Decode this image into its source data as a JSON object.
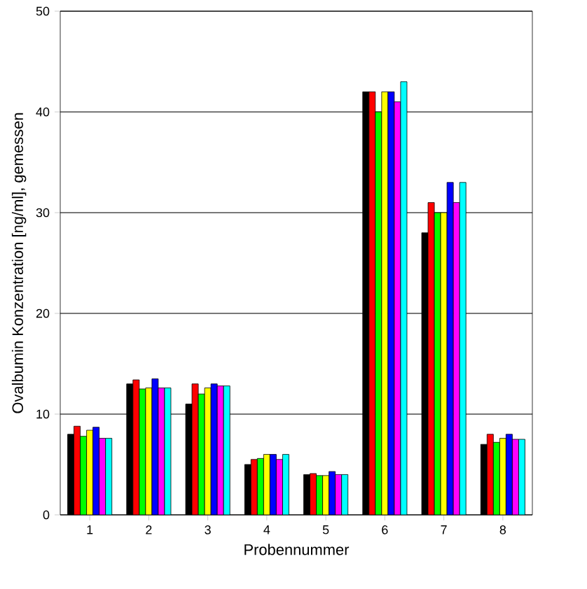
{
  "chart_data": {
    "type": "bar",
    "xlabel": "Probennummer",
    "ylabel": "Ovalbumin Konzentration [ng/ml], gemessen",
    "categories": [
      "1",
      "2",
      "3",
      "4",
      "5",
      "6",
      "7",
      "8"
    ],
    "series": [
      {
        "color": "#000000",
        "values": [
          8.0,
          13.0,
          11.0,
          5.0,
          4.0,
          42.0,
          28.0,
          7.0
        ]
      },
      {
        "color": "#ff0000",
        "values": [
          8.8,
          13.4,
          13.0,
          5.5,
          4.1,
          42.0,
          31.0,
          8.0
        ]
      },
      {
        "color": "#00ff00",
        "values": [
          7.8,
          12.5,
          12.0,
          5.6,
          3.9,
          40.0,
          30.0,
          7.2
        ]
      },
      {
        "color": "#ffff00",
        "values": [
          8.4,
          12.6,
          12.6,
          6.0,
          3.9,
          42.0,
          30.0,
          7.6
        ]
      },
      {
        "color": "#0000ff",
        "values": [
          8.7,
          13.5,
          13.0,
          6.0,
          4.3,
          42.0,
          33.0,
          8.0
        ]
      },
      {
        "color": "#ff00ff",
        "values": [
          7.6,
          12.6,
          12.8,
          5.5,
          4.0,
          41.0,
          31.0,
          7.5
        ]
      },
      {
        "color": "#00ffff",
        "values": [
          7.6,
          12.6,
          12.8,
          6.0,
          4.0,
          43.0,
          33.0,
          7.5
        ]
      }
    ],
    "ylim": [
      0,
      50
    ],
    "yticks": [
      0,
      10,
      20,
      30,
      40,
      50
    ],
    "grid": "y"
  }
}
